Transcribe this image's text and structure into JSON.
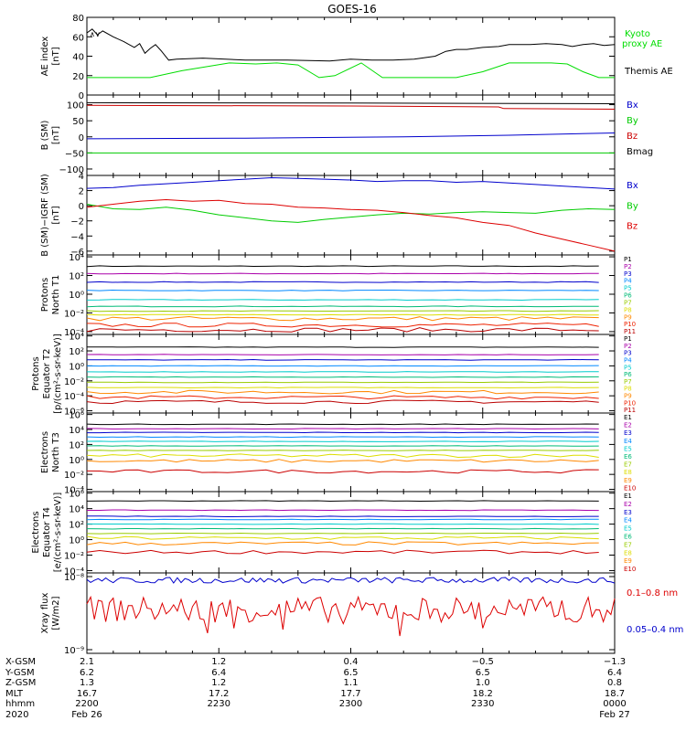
{
  "title": "GOES-16",
  "chart_data": [
    {
      "type": "line",
      "id": "ae",
      "ylabel": [
        "AE index",
        "[nT]"
      ],
      "ylim": [
        0,
        80
      ],
      "yticks": [
        0,
        20,
        40,
        60,
        80
      ],
      "series": [
        {
          "name": "Kyoto proxy AE",
          "color": "#00dd00",
          "x": [
            0,
            0.12,
            0.18,
            0.27,
            0.32,
            0.36,
            0.4,
            0.44,
            0.47,
            0.52,
            0.56,
            0.62,
            0.7,
            0.75,
            0.8,
            0.84,
            0.86,
            0.88,
            0.91,
            0.94,
            0.97,
            1.0
          ],
          "values": [
            18,
            18,
            25,
            33,
            32,
            33,
            31,
            18,
            20,
            33,
            18,
            18,
            18,
            24,
            33,
            33,
            33,
            33,
            32,
            24,
            18,
            18
          ]
        },
        {
          "name": "Themis AE",
          "color": "#000000",
          "x": [
            0,
            0.01,
            0.02,
            0.03,
            0.05,
            0.07,
            0.08,
            0.09,
            0.1,
            0.11,
            0.12,
            0.13,
            0.14,
            0.155,
            0.17,
            0.22,
            0.3,
            0.38,
            0.46,
            0.5,
            0.54,
            0.58,
            0.62,
            0.66,
            0.68,
            0.7,
            0.72,
            0.75,
            0.78,
            0.8,
            0.82,
            0.84,
            0.87,
            0.9,
            0.92,
            0.94,
            0.96,
            0.98,
            1.0
          ],
          "values": [
            64,
            68,
            62,
            66,
            60,
            55,
            52,
            49,
            53,
            43,
            48,
            52,
            46,
            36,
            37,
            38,
            36,
            36,
            35,
            37,
            36,
            36,
            37,
            40,
            45,
            47,
            47,
            49,
            50,
            52,
            52,
            52,
            53,
            52,
            50,
            52,
            53,
            51,
            52
          ]
        }
      ],
      "legend": [
        "Kyoto",
        "proxy AE",
        "Themis AE"
      ],
      "legend_colors": [
        "#00dd00",
        "#00dd00",
        "#000000"
      ],
      "annotations": [
        {
          "text": "∧∨",
          "note": "small marker near start"
        }
      ]
    },
    {
      "type": "line",
      "id": "bsm",
      "ylabel": [
        "B (SM)",
        "[nT]"
      ],
      "ylim": [
        -120,
        130
      ],
      "yticks": [
        -100,
        -50,
        0,
        50,
        100
      ],
      "series": [
        {
          "name": "Bx",
          "color": "#0000cc",
          "x": [
            0,
            0.3,
            0.6,
            0.8,
            1.0
          ],
          "values": [
            -6,
            -4,
            0,
            5,
            12
          ]
        },
        {
          "name": "By",
          "color": "#00cc00",
          "x": [
            0,
            0.5,
            1.0
          ],
          "values": [
            -50,
            -50,
            -50
          ]
        },
        {
          "name": "Bz",
          "color": "#cc0000",
          "x": [
            0,
            0.5,
            0.78,
            0.79,
            1.0
          ],
          "values": [
            98,
            96,
            93,
            88,
            86
          ]
        },
        {
          "name": "Bmag",
          "color": "#000000",
          "x": [
            0,
            0.5,
            1.0
          ],
          "values": [
            106,
            105,
            103
          ]
        }
      ],
      "legend": [
        "Bx",
        "By",
        "Bz",
        "Bmag"
      ]
    },
    {
      "type": "line",
      "id": "bdiff",
      "ylabel": [
        "B (SM)−IGRF (SM)",
        "[nT]"
      ],
      "ylim": [
        -6.5,
        4
      ],
      "yticks": [
        -6,
        -4,
        -2,
        0,
        2,
        4
      ],
      "series": [
        {
          "name": "Bx",
          "color": "#0000cc",
          "x": [
            0,
            0.05,
            0.1,
            0.15,
            0.2,
            0.25,
            0.3,
            0.35,
            0.4,
            0.45,
            0.5,
            0.55,
            0.6,
            0.65,
            0.7,
            0.75,
            0.8,
            0.85,
            0.9,
            0.95,
            1.0
          ],
          "values": [
            2.3,
            2.4,
            2.7,
            2.9,
            3.1,
            3.3,
            3.5,
            3.7,
            3.6,
            3.5,
            3.4,
            3.2,
            3.3,
            3.3,
            3.1,
            3.2,
            3.0,
            2.8,
            2.6,
            2.4,
            2.2
          ]
        },
        {
          "name": "By",
          "color": "#00cc00",
          "x": [
            0,
            0.05,
            0.1,
            0.15,
            0.2,
            0.25,
            0.3,
            0.35,
            0.4,
            0.45,
            0.5,
            0.55,
            0.6,
            0.65,
            0.7,
            0.75,
            0.8,
            0.85,
            0.9,
            0.95,
            1.0
          ],
          "values": [
            0.2,
            -0.4,
            -0.5,
            -0.2,
            -0.6,
            -1.2,
            -1.6,
            -2.0,
            -2.2,
            -1.8,
            -1.5,
            -1.2,
            -1.0,
            -1.1,
            -0.9,
            -0.8,
            -0.9,
            -1.0,
            -0.6,
            -0.4,
            -0.5
          ]
        },
        {
          "name": "Bz",
          "color": "#dd0000",
          "x": [
            0,
            0.05,
            0.1,
            0.15,
            0.2,
            0.25,
            0.3,
            0.35,
            0.4,
            0.45,
            0.5,
            0.55,
            0.6,
            0.65,
            0.7,
            0.75,
            0.8,
            0.85,
            0.9,
            0.95,
            1.0
          ],
          "values": [
            -0.2,
            0.2,
            0.6,
            0.8,
            0.6,
            0.7,
            0.3,
            0.2,
            -0.2,
            -0.3,
            -0.5,
            -0.6,
            -0.9,
            -1.3,
            -1.6,
            -2.2,
            -2.6,
            -3.6,
            -4.4,
            -5.2,
            -6.0
          ]
        }
      ],
      "legend": [
        "Bx",
        "By",
        "Bz"
      ]
    },
    {
      "type": "line",
      "id": "protons-t1",
      "yscale": "log",
      "ylabel": [
        "Protons",
        "North T1"
      ],
      "ylim_exp": [
        -4.3,
        4.2
      ],
      "yticks": [
        "10⁻⁴",
        "10⁻²",
        "10⁰",
        "10²",
        "10⁴"
      ],
      "legend": [
        "P1",
        "P2",
        "P3",
        "P4",
        "P5",
        "P6",
        "P7",
        "P8",
        "P9",
        "P10",
        "P11"
      ],
      "legend_colors": [
        "#000000",
        "#aa00aa",
        "#0000cc",
        "#0088ff",
        "#00cccc",
        "#00bb77",
        "#99cc00",
        "#dddd00",
        "#ff8800",
        "#ee2200",
        "#bb0000"
      ],
      "series_log10": [
        3.0,
        2.2,
        1.3,
        0.4,
        -0.6,
        -1.3,
        -1.8,
        -2.2,
        -2.6,
        -3.3,
        -3.8
      ]
    },
    {
      "type": "line",
      "id": "protons-t2",
      "yscale": "log",
      "ylabel": [
        "Protons",
        "Equator T2",
        "[p/(cm²-s-sr-keV)]"
      ],
      "ylim_exp": [
        -6.3,
        4.2
      ],
      "yticks": [
        "10⁻⁶",
        "10⁻⁴",
        "10⁻²",
        "10⁰",
        "10²",
        "10⁴"
      ],
      "legend": [
        "P1",
        "P2",
        "P3",
        "P4",
        "P5",
        "P6",
        "P7",
        "P8",
        "P9",
        "P10",
        "P11"
      ],
      "legend_colors": [
        "#000000",
        "#aa00aa",
        "#0000cc",
        "#0088ff",
        "#00cccc",
        "#00bb77",
        "#99cc00",
        "#dddd00",
        "#ff8800",
        "#ee2200",
        "#bb0000"
      ],
      "series_log10": [
        2.5,
        1.5,
        0.8,
        0.0,
        -0.8,
        -1.5,
        -2.2,
        -2.9,
        -3.5,
        -4.2,
        -4.8
      ]
    },
    {
      "type": "line",
      "id": "electrons-t3",
      "yscale": "log",
      "ylabel": [
        "Electrons",
        "North T3"
      ],
      "ylim_exp": [
        -4.3,
        6.2
      ],
      "yticks": [
        "10⁻⁴",
        "10⁻²",
        "10⁰",
        "10²",
        "10⁴",
        "10⁶"
      ],
      "legend": [
        "E1",
        "E2",
        "E3",
        "E4",
        "E5",
        "E6",
        "E7",
        "E8",
        "E9",
        "E10"
      ],
      "legend_colors": [
        "#000000",
        "#aa00aa",
        "#0000cc",
        "#0088ff",
        "#00cccc",
        "#00bb77",
        "#99cc00",
        "#dddd00",
        "#ff8800",
        "#cc0000"
      ],
      "series_log10": [
        4.7,
        4.1,
        3.6,
        3.0,
        2.4,
        1.8,
        1.2,
        0.5,
        -0.2,
        -1.6
      ]
    },
    {
      "type": "line",
      "id": "electrons-t4",
      "yscale": "log",
      "ylabel": [
        "Electrons",
        "Equator T4",
        "[e/(cm²-s-sr-keV)]"
      ],
      "ylim_exp": [
        -4.3,
        6.2
      ],
      "yticks": [
        "10⁻⁴",
        "10⁻²",
        "10⁰",
        "10²",
        "10⁴",
        "10⁶"
      ],
      "legend": [
        "E1",
        "E2",
        "E3",
        "E4",
        "E5",
        "E6",
        "E7",
        "E8",
        "E9",
        "E10"
      ],
      "legend_colors": [
        "#000000",
        "#aa00aa",
        "#0000cc",
        "#0088ff",
        "#00cccc",
        "#00bb77",
        "#99cc00",
        "#dddd00",
        "#ff8800",
        "#cc0000"
      ],
      "series_log10": [
        5.0,
        3.8,
        3.0,
        2.6,
        2.0,
        1.4,
        0.8,
        0.2,
        -0.5,
        -1.6
      ]
    },
    {
      "type": "line",
      "id": "xray",
      "yscale": "log",
      "ylabel": [
        "Xray flux",
        "[W/m2]"
      ],
      "yticks": [
        "10⁻⁸",
        "10⁻⁹"
      ],
      "ylim_exp": [
        -9.05,
        -7.95
      ],
      "series": [
        {
          "name": "0.1–0.8 nm",
          "color": "#dd0000",
          "mean_log10": -8.45
        },
        {
          "name": "0.05–0.4 nm",
          "color": "#0000cc",
          "mean_log10": -8.05
        }
      ],
      "legend": [
        "0.1–0.8 nm",
        "0.05–0.4 nm"
      ],
      "legend_colors": [
        "#dd0000",
        "#0000cc"
      ]
    }
  ],
  "x_axis": {
    "row_labels": [
      "X-GSM",
      "Y-GSM",
      "Z-GSM",
      "MLT",
      "hhmm",
      "2020"
    ],
    "columns": [
      {
        "x": 0.0,
        "values": [
          "2.1",
          "6.2",
          "1.3",
          "16.7",
          "2200",
          "Feb 26"
        ]
      },
      {
        "x": 0.25,
        "values": [
          "1.2",
          "6.4",
          "1.2",
          "17.2",
          "2230",
          ""
        ]
      },
      {
        "x": 0.5,
        "values": [
          "0.4",
          "6.5",
          "1.1",
          "17.7",
          "2300",
          ""
        ]
      },
      {
        "x": 0.75,
        "values": [
          "−0.5",
          "6.5",
          "1.0",
          "18.2",
          "2330",
          ""
        ]
      },
      {
        "x": 1.0,
        "values": [
          "−1.3",
          "6.4",
          "0.8",
          "18.7",
          "0000",
          "Feb 27"
        ]
      }
    ]
  }
}
